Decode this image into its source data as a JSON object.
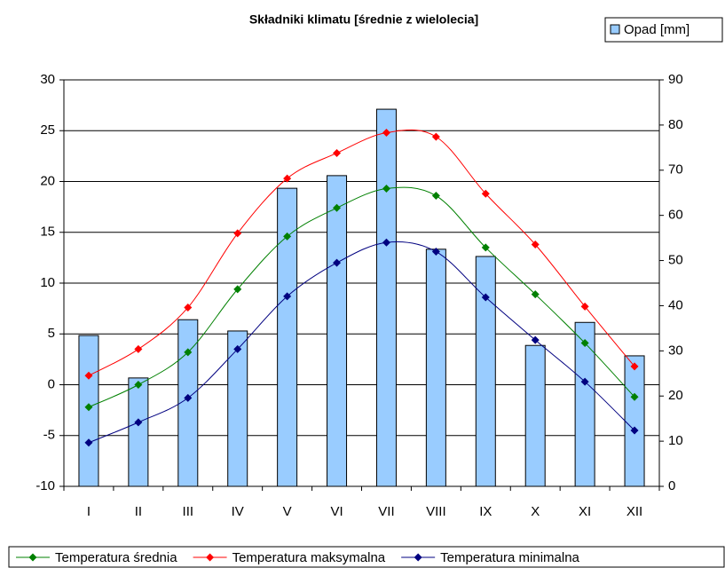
{
  "chart_data": {
    "type": "combo",
    "title": "Składniki klimatu [średnie z wielolecia]",
    "categories": [
      "I",
      "II",
      "III",
      "IV",
      "V",
      "VI",
      "VII",
      "VIII",
      "IX",
      "X",
      "XI",
      "XII"
    ],
    "series": [
      {
        "name": "Opad [mm]",
        "type": "bar",
        "axis": "y2",
        "color": "#99ccff",
        "values": [
          33.4,
          24.0,
          36.9,
          34.4,
          66.0,
          68.8,
          83.5,
          52.5,
          50.9,
          31.2,
          36.3,
          28.9
        ]
      },
      {
        "name": "Temperatura średnia",
        "type": "line",
        "axis": "y",
        "color": "#008000",
        "values": [
          -2.2,
          0.0,
          3.2,
          9.4,
          14.6,
          17.4,
          19.3,
          18.6,
          13.5,
          8.9,
          4.1,
          -1.2
        ]
      },
      {
        "name": "Temperatura maksymalna",
        "type": "line",
        "axis": "y",
        "color": "#ff0000",
        "values": [
          0.9,
          3.5,
          7.6,
          14.9,
          20.3,
          22.8,
          24.8,
          24.4,
          18.8,
          13.8,
          7.7,
          1.8
        ]
      },
      {
        "name": "Temperatura minimalna",
        "type": "line",
        "axis": "y",
        "color": "#000080",
        "values": [
          -5.7,
          -3.7,
          -1.3,
          3.5,
          8.7,
          12.0,
          14.0,
          13.1,
          8.6,
          4.4,
          0.3,
          -4.5
        ]
      }
    ],
    "ylim": [
      -10,
      30
    ],
    "yticks": [
      -10,
      -5,
      0,
      5,
      10,
      15,
      20,
      25,
      30
    ],
    "y2lim": [
      0,
      90
    ],
    "y2ticks": [
      0,
      10,
      20,
      30,
      40,
      50,
      60,
      70,
      80,
      90
    ],
    "grid": true
  }
}
